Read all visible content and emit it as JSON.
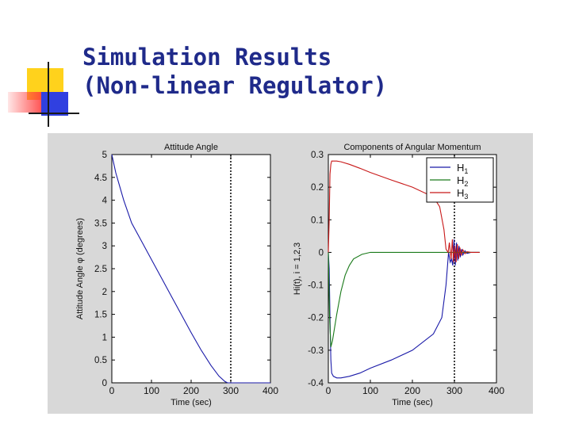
{
  "slide": {
    "title_line1": "Simulation Results",
    "title_line2": "(Non-linear Regulator)"
  },
  "colors": {
    "title": "#1f2a8a",
    "deco_yellow": "#ffd21c",
    "deco_red": "#ff3a3a",
    "deco_blue": "#3040e0",
    "figure_bg": "#d8d8d8",
    "series_blue": "#1a1aa8",
    "series_red": "#c81818",
    "series_green": "#1a7a1a"
  },
  "chart_data": [
    {
      "type": "line",
      "title": "Attitude Angle",
      "xlabel": "Time (sec)",
      "ylabel": "Attitude Angle φ (degrees)",
      "xlim": [
        0,
        400
      ],
      "ylim": [
        0,
        5
      ],
      "xticks": [
        0,
        100,
        200,
        300,
        400
      ],
      "yticks": [
        0,
        0.5,
        1,
        1.5,
        2,
        2.5,
        3,
        3.5,
        4,
        4.5,
        5
      ],
      "xtick_labels": [
        "0",
        "100",
        "200",
        "300",
        "400"
      ],
      "ytick_labels": [
        "0",
        "0.5",
        "1",
        "1.5",
        "2",
        "2.5",
        "3",
        "3.5",
        "4",
        "4.5",
        "5"
      ],
      "grid": false,
      "vertical_marker_x": 300,
      "series": [
        {
          "color": "#1a1aa8",
          "x": [
            0,
            5,
            10,
            20,
            30,
            50,
            75,
            100,
            125,
            150,
            175,
            200,
            225,
            250,
            270,
            285,
            292,
            300,
            400
          ],
          "y": [
            5.0,
            4.8,
            4.6,
            4.3,
            4.0,
            3.5,
            3.1,
            2.7,
            2.3,
            1.9,
            1.5,
            1.1,
            0.72,
            0.38,
            0.15,
            0.03,
            0.0,
            0.0,
            0.0
          ]
        }
      ]
    },
    {
      "type": "line",
      "title": "Components of Angular Momentum",
      "xlabel": "Time (sec)",
      "ylabel": "Hi(t), i = 1,2,3",
      "xlim": [
        0,
        400
      ],
      "ylim": [
        -0.4,
        0.3
      ],
      "xticks": [
        0,
        100,
        200,
        300,
        400
      ],
      "yticks": [
        -0.4,
        -0.3,
        -0.2,
        -0.1,
        0,
        0.1,
        0.2,
        0.3
      ],
      "xtick_labels": [
        "0",
        "100",
        "200",
        "300",
        "400"
      ],
      "ytick_labels": [
        "-0.4",
        "-0.3",
        "-0.2",
        "-0.1",
        "0",
        "0.1",
        "0.2",
        "0.3"
      ],
      "grid": false,
      "vertical_marker_x": 300,
      "legend_position": "top-right",
      "legend": [
        "H1",
        "H2",
        "H3"
      ],
      "series": [
        {
          "name": "H1",
          "color": "#1a1aa8",
          "x": [
            0,
            2,
            4,
            6,
            8,
            12,
            20,
            30,
            50,
            75,
            100,
            150,
            200,
            250,
            270,
            280,
            286,
            290,
            293,
            296,
            299,
            302,
            305,
            308,
            311,
            314,
            317,
            320,
            325,
            330,
            340,
            360
          ],
          "y": [
            0,
            -0.05,
            -0.2,
            -0.33,
            -0.37,
            -0.38,
            -0.385,
            -0.385,
            -0.38,
            -0.37,
            -0.355,
            -0.33,
            -0.3,
            -0.25,
            -0.2,
            -0.1,
            0.0,
            -0.03,
            -0.02,
            -0.04,
            0.04,
            -0.04,
            0.03,
            -0.025,
            0.02,
            -0.015,
            0.01,
            -0.008,
            0.005,
            -0.003,
            0.0,
            0.0
          ]
        },
        {
          "name": "H2",
          "color": "#1a7a1a",
          "x": [
            0,
            3,
            6,
            10,
            20,
            30,
            40,
            50,
            60,
            80,
            100,
            150,
            200,
            250,
            300,
            360
          ],
          "y": [
            0,
            -0.2,
            -0.29,
            -0.27,
            -0.19,
            -0.12,
            -0.07,
            -0.04,
            -0.02,
            -0.006,
            0.0,
            0.0,
            0.0,
            0.0,
            0.0,
            0.0
          ]
        },
        {
          "name": "H3",
          "color": "#c81818",
          "x": [
            0,
            2,
            4,
            6,
            8,
            10,
            15,
            20,
            30,
            50,
            75,
            100,
            150,
            200,
            250,
            265,
            275,
            280,
            285,
            288,
            292,
            295,
            298,
            301,
            304,
            307,
            310,
            313,
            316,
            320,
            325,
            330,
            340,
            360
          ],
          "y": [
            0,
            0.1,
            0.24,
            0.27,
            0.28,
            0.28,
            0.28,
            0.28,
            0.278,
            0.27,
            0.258,
            0.245,
            0.222,
            0.2,
            0.17,
            0.14,
            0.07,
            0.01,
            0.0,
            0.03,
            -0.02,
            0.04,
            -0.03,
            0.02,
            -0.03,
            0.025,
            -0.02,
            0.015,
            -0.01,
            0.008,
            -0.004,
            0.002,
            0.0,
            0.0
          ]
        }
      ]
    }
  ]
}
